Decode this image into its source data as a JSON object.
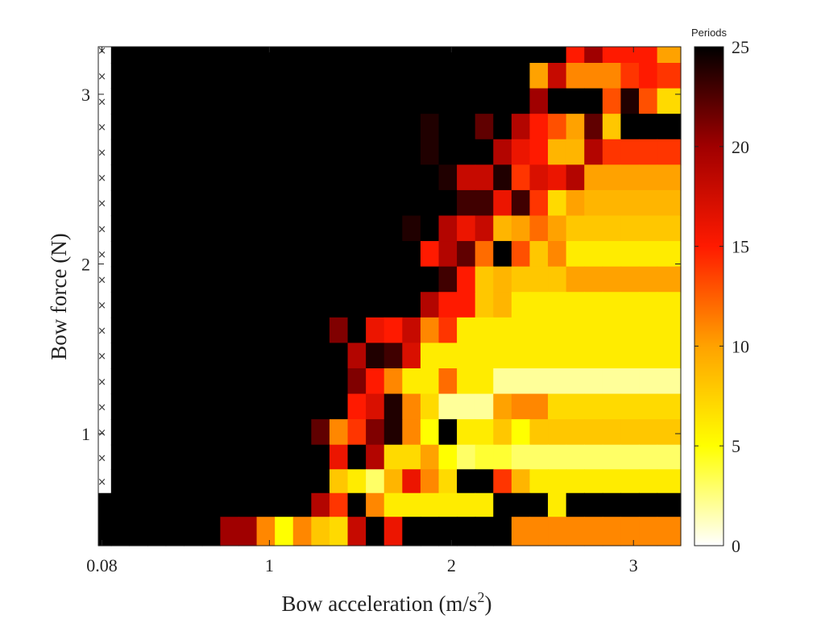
{
  "chart_data": {
    "type": "heatmap",
    "title": "",
    "xlabel": "Bow acceleration (m/s",
    "xlabel_sup": "2",
    "xlabel_suffix": ")",
    "ylabel": "Bow force (N)",
    "colorbar": {
      "label": "Periods",
      "range": [
        0,
        25
      ],
      "ticks": [
        "0",
        "5",
        "10",
        "15",
        "20",
        "25"
      ],
      "colormap": "hot (reversed)"
    },
    "x_range": [
      0.06,
      3.26
    ],
    "y_range": [
      0.34,
      3.28
    ],
    "x_ticks": [
      {
        "value": 0.08,
        "label": "0.08"
      },
      {
        "value": 1,
        "label": "1"
      },
      {
        "value": 2,
        "label": "2"
      },
      {
        "value": 3,
        "label": "3"
      }
    ],
    "y_ticks": [
      {
        "value": 1,
        "label": "1"
      },
      {
        "value": 2,
        "label": "2"
      },
      {
        "value": 3,
        "label": "3"
      }
    ],
    "grid": false,
    "no_oscillation_marker": "×",
    "no_oscillation_column_x": 0.08,
    "x": [
      0.08,
      0.18,
      0.28,
      0.38,
      0.48,
      0.58,
      0.68,
      0.78,
      0.88,
      0.98,
      1.08,
      1.18,
      1.28,
      1.38,
      1.48,
      1.58,
      1.68,
      1.78,
      1.88,
      1.98,
      2.08,
      2.18,
      2.28,
      2.38,
      2.48,
      2.58,
      2.68,
      2.78,
      2.88,
      2.98,
      3.08,
      3.18
    ],
    "y": [
      0.44,
      0.58,
      0.72,
      0.86,
      1.01,
      1.16,
      1.31,
      1.46,
      1.61,
      1.76,
      1.91,
      2.06,
      2.21,
      2.36,
      2.51,
      2.66,
      2.81,
      2.96,
      3.11,
      3.26
    ],
    "z_rows_top_to_bottom": [
      [
        null,
        25,
        25,
        25,
        25,
        25,
        25,
        25,
        25,
        25,
        25,
        25,
        25,
        25,
        25,
        25,
        25,
        25,
        25,
        25,
        25,
        25,
        25,
        25,
        25,
        25,
        15,
        20,
        15,
        15,
        15,
        10
      ],
      [
        null,
        25,
        25,
        25,
        25,
        25,
        25,
        25,
        25,
        25,
        25,
        25,
        25,
        25,
        25,
        25,
        25,
        25,
        25,
        25,
        25,
        25,
        25,
        25,
        10,
        18,
        11,
        11,
        11,
        14,
        15,
        14
      ],
      [
        null,
        25,
        25,
        25,
        25,
        25,
        25,
        25,
        25,
        25,
        25,
        25,
        25,
        25,
        25,
        25,
        25,
        25,
        25,
        25,
        25,
        25,
        25,
        25,
        20,
        25,
        25,
        25,
        13,
        24,
        13,
        7
      ],
      [
        null,
        25,
        25,
        25,
        25,
        25,
        25,
        25,
        25,
        25,
        25,
        25,
        25,
        25,
        25,
        25,
        25,
        25,
        24,
        25,
        25,
        22,
        25,
        19,
        15,
        13,
        10,
        22,
        8,
        25
      ],
      [
        null,
        25,
        25,
        25,
        25,
        25,
        25,
        25,
        25,
        25,
        25,
        25,
        25,
        25,
        25,
        25,
        25,
        25,
        24,
        25,
        25,
        25,
        19,
        16,
        15,
        9,
        9,
        19,
        14
      ],
      [
        null,
        25,
        25,
        25,
        25,
        25,
        25,
        25,
        25,
        25,
        25,
        25,
        25,
        25,
        25,
        25,
        25,
        25,
        25,
        24,
        18,
        18,
        24,
        14,
        17,
        16,
        19,
        10
      ],
      [
        null,
        25,
        25,
        25,
        25,
        25,
        25,
        25,
        25,
        25,
        25,
        25,
        25,
        25,
        25,
        25,
        25,
        25,
        25,
        25,
        23,
        23,
        16,
        23,
        14,
        7,
        10,
        9
      ],
      [
        null,
        25,
        25,
        25,
        25,
        25,
        25,
        25,
        25,
        25,
        25,
        25,
        25,
        25,
        25,
        25,
        25,
        24,
        25,
        19,
        16,
        18,
        9,
        10,
        12,
        10,
        8
      ],
      [
        null,
        25,
        25,
        25,
        25,
        25,
        25,
        25,
        25,
        25,
        25,
        25,
        25,
        25,
        25,
        25,
        25,
        25,
        15,
        19,
        22,
        12,
        25,
        13,
        8,
        11,
        6
      ],
      [
        null,
        25,
        25,
        25,
        25,
        25,
        25,
        25,
        25,
        25,
        25,
        25,
        25,
        25,
        25,
        25,
        25,
        25,
        25,
        23,
        15,
        8,
        9,
        8,
        8,
        8,
        10
      ],
      [
        null,
        25,
        25,
        25,
        25,
        25,
        25,
        25,
        25,
        25,
        25,
        25,
        25,
        25,
        25,
        25,
        25,
        25,
        19,
        15,
        15,
        8,
        9,
        6,
        6,
        6,
        6
      ],
      [
        null,
        25,
        25,
        25,
        25,
        25,
        25,
        25,
        25,
        25,
        25,
        25,
        25,
        21,
        25,
        16,
        15,
        18,
        11,
        14,
        6,
        6,
        6,
        6,
        6,
        6,
        6
      ],
      [
        null,
        25,
        25,
        25,
        25,
        25,
        25,
        25,
        25,
        25,
        25,
        25,
        25,
        25,
        19,
        24,
        23,
        17,
        6,
        6,
        6,
        6,
        6,
        6,
        6,
        6,
        6
      ],
      [
        null,
        25,
        25,
        25,
        25,
        25,
        25,
        25,
        25,
        25,
        25,
        25,
        25,
        25,
        21,
        15,
        11,
        6,
        6,
        12,
        6,
        6,
        2,
        2,
        2,
        2
      ],
      [
        null,
        25,
        25,
        25,
        25,
        25,
        25,
        25,
        25,
        25,
        25,
        25,
        25,
        25,
        15,
        17,
        24,
        11,
        7,
        2,
        2,
        2,
        10,
        11,
        11,
        7
      ],
      [
        null,
        25,
        25,
        25,
        25,
        25,
        25,
        25,
        25,
        25,
        25,
        25,
        22,
        11,
        14,
        21,
        24,
        11,
        5,
        25,
        6,
        6,
        8,
        5,
        8
      ],
      [
        null,
        25,
        25,
        25,
        25,
        25,
        25,
        25,
        25,
        25,
        25,
        25,
        25,
        16,
        25,
        19,
        7,
        7,
        10,
        5,
        3,
        4,
        4,
        3,
        3
      ],
      [
        null,
        25,
        25,
        25,
        25,
        25,
        25,
        25,
        25,
        25,
        25,
        25,
        25,
        8,
        6,
        3,
        9,
        16,
        11,
        7,
        25,
        25,
        14,
        9,
        6
      ],
      [
        25,
        25,
        25,
        25,
        25,
        25,
        25,
        25,
        25,
        25,
        25,
        25,
        19,
        14,
        25,
        11,
        6,
        6,
        6,
        6,
        6,
        6,
        25,
        25,
        25,
        6,
        25
      ],
      [
        25,
        25,
        25,
        25,
        25,
        25,
        25,
        20,
        20,
        11,
        5,
        11,
        8,
        7,
        18,
        25,
        16,
        25,
        25,
        25,
        25,
        25,
        25,
        11
      ]
    ]
  }
}
